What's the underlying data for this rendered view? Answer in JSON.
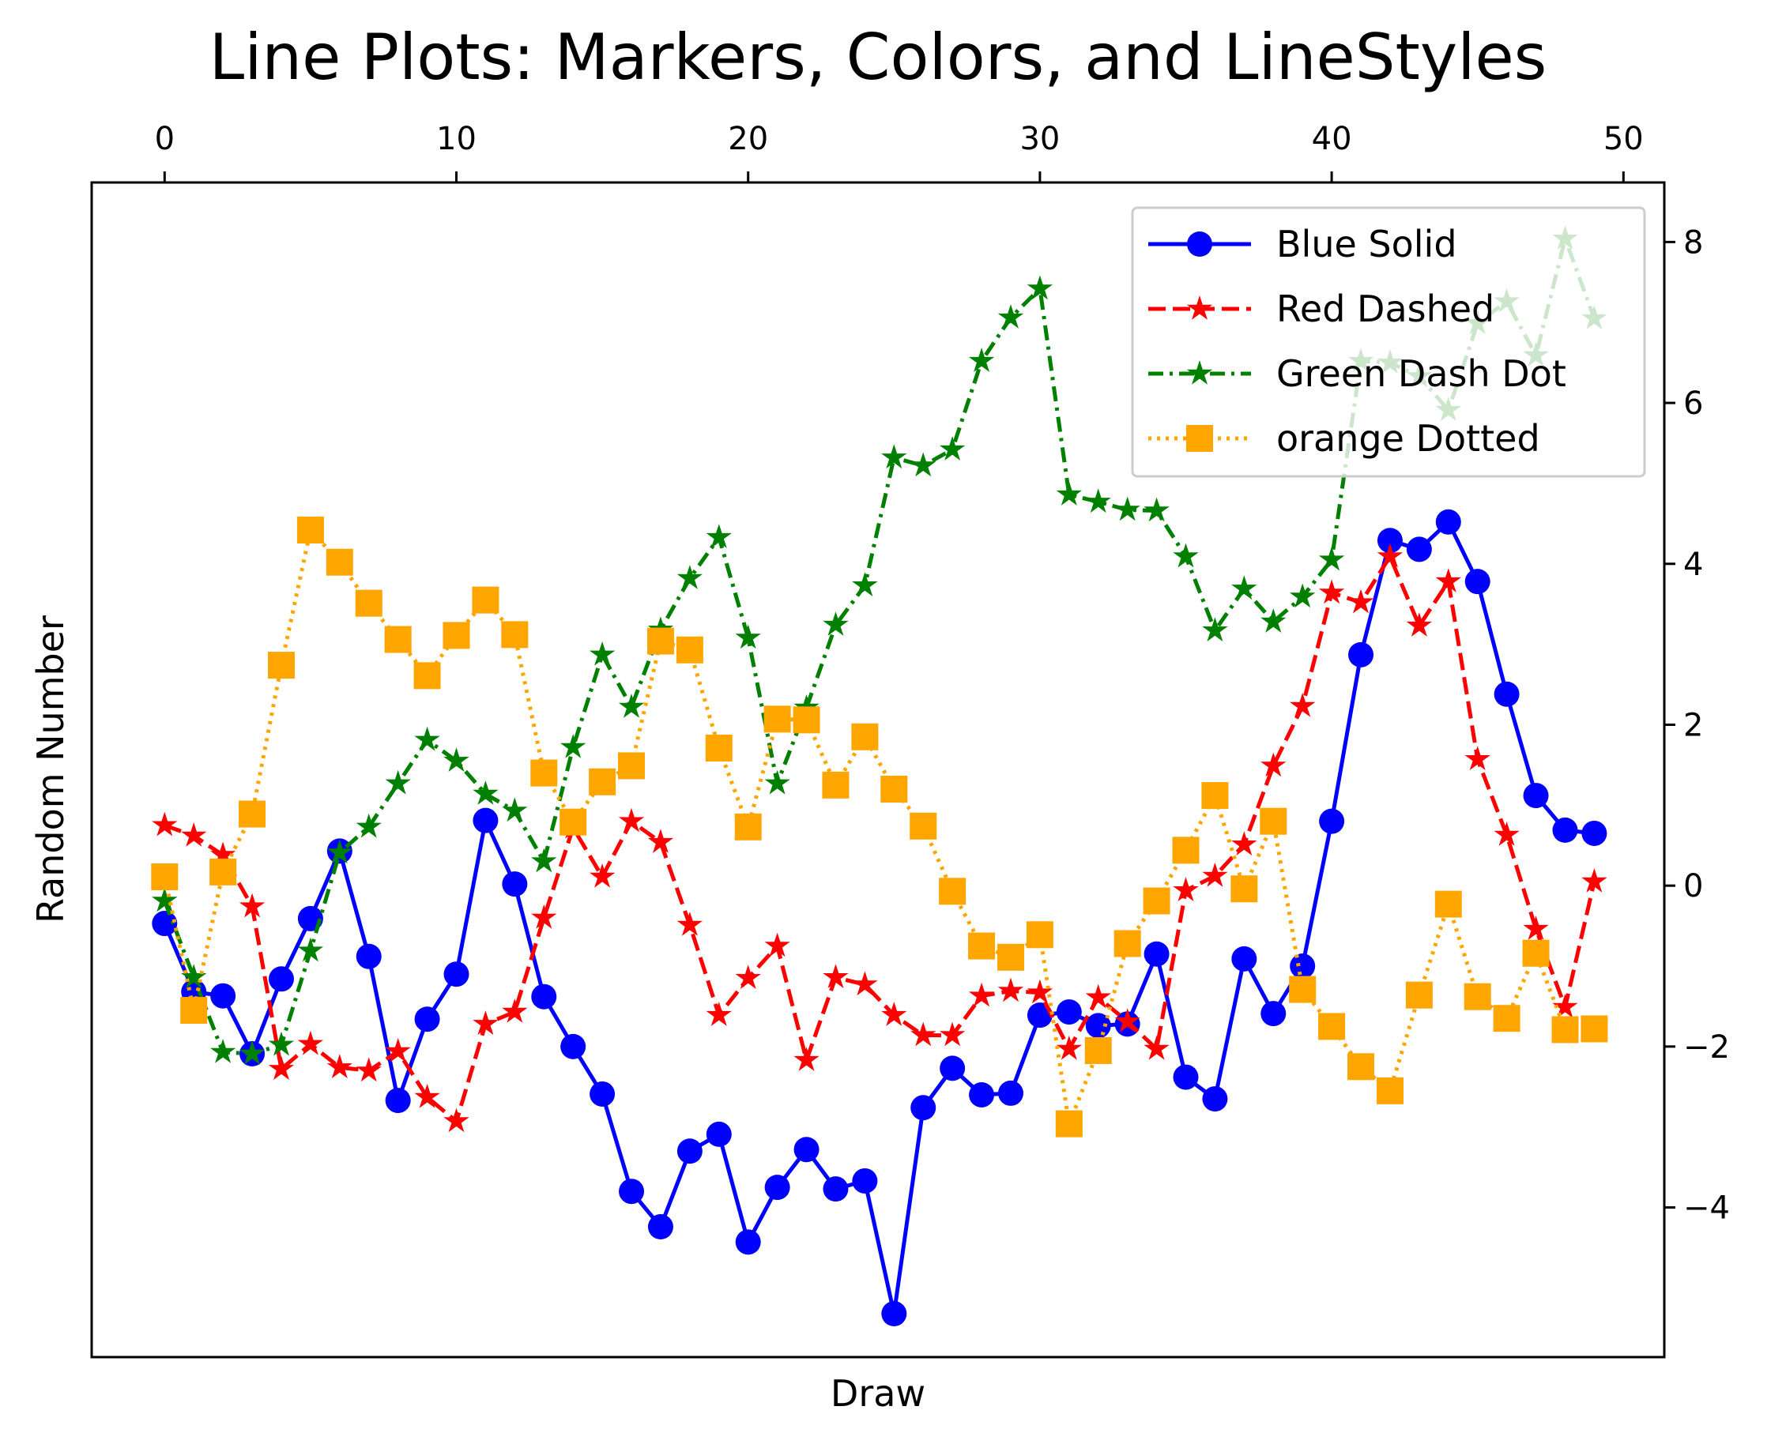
{
  "chart_data": {
    "type": "line",
    "title": "Line Plots: Markers, Colors, and LineStyles",
    "xlabel": "Draw",
    "ylabel": "Random Number",
    "xlim": [
      -2.5,
      51.4
    ],
    "ylim": [
      -5.86,
      8.74
    ],
    "x_ticks": [
      0,
      10,
      20,
      30,
      40,
      50
    ],
    "y_ticks": [
      -4,
      -2,
      0,
      2,
      4,
      6,
      8
    ],
    "x_tick_labels": [
      "0",
      "10",
      "20",
      "30",
      "40",
      "50"
    ],
    "y_tick_labels": [
      "−4",
      "−2",
      "0",
      "2",
      "4",
      "6",
      "8"
    ],
    "x_axis_position": "top",
    "y_axis_position": "right",
    "grid": false,
    "legend_position": "top-right",
    "x": [
      0,
      1,
      2,
      3,
      4,
      5,
      6,
      7,
      8,
      9,
      10,
      11,
      12,
      13,
      14,
      15,
      16,
      17,
      18,
      19,
      20,
      21,
      22,
      23,
      24,
      25,
      26,
      27,
      28,
      29,
      30,
      31,
      32,
      33,
      34,
      35,
      36,
      37,
      38,
      39,
      40,
      41,
      42,
      43,
      44,
      45,
      46,
      47,
      48,
      49
    ],
    "series": [
      {
        "name": "Blue Solid",
        "color": "#0000ff",
        "linestyle": "solid",
        "marker": "circle",
        "values": [
          -0.47,
          -1.32,
          -1.37,
          -2.09,
          -1.16,
          -0.41,
          0.43,
          -0.88,
          -2.67,
          -1.66,
          -1.1,
          0.81,
          0.02,
          -1.38,
          -2.0,
          -2.59,
          -3.8,
          -4.24,
          -3.3,
          -3.09,
          -4.43,
          -3.75,
          -3.28,
          -3.77,
          -3.67,
          -5.32,
          -2.76,
          -2.27,
          -2.6,
          -2.58,
          -1.61,
          -1.57,
          -1.74,
          -1.72,
          -0.85,
          -2.38,
          -2.65,
          -0.91,
          -1.59,
          -1.0,
          0.8,
          2.87,
          4.29,
          4.18,
          4.52,
          3.78,
          2.38,
          1.12,
          0.69,
          0.65
        ],
        "show_markers": true
      },
      {
        "name": "Red Dashed",
        "color": "#ff0000",
        "linestyle": "dashed",
        "marker": "star",
        "values": [
          0.75,
          0.62,
          0.38,
          -0.26,
          -2.28,
          -1.97,
          -2.26,
          -2.3,
          -2.06,
          -2.63,
          -2.93,
          -1.72,
          -1.57,
          -0.4,
          0.72,
          0.11,
          0.8,
          0.54,
          -0.49,
          -1.61,
          -1.15,
          -0.75,
          -2.17,
          -1.14,
          -1.23,
          -1.61,
          -1.86,
          -1.86,
          -1.37,
          -1.31,
          -1.33,
          -2.03,
          -1.39,
          -1.69,
          -2.03,
          -0.06,
          0.12,
          0.51,
          1.49,
          2.23,
          3.64,
          3.52,
          4.09,
          3.23,
          3.78,
          1.57,
          0.63,
          -0.54,
          -1.51,
          0.05
        ]
      },
      {
        "name": "Green Dash Dot",
        "color": "#008000",
        "linestyle": "dashdot",
        "marker": "star",
        "values": [
          -0.19,
          -1.14,
          -2.07,
          -2.09,
          -1.98,
          -0.81,
          0.41,
          0.73,
          1.27,
          1.81,
          1.55,
          1.14,
          0.93,
          0.3,
          1.72,
          2.87,
          2.22,
          3.18,
          3.82,
          4.33,
          3.08,
          1.27,
          2.21,
          3.24,
          3.73,
          5.32,
          5.22,
          5.42,
          6.52,
          7.06,
          7.42,
          4.86,
          4.77,
          4.67,
          4.66,
          4.09,
          3.17,
          3.69,
          3.28,
          3.59,
          4.05,
          6.52,
          6.5,
          6.33,
          5.91,
          6.99,
          7.26,
          6.59,
          8.04,
          7.05
        ]
      },
      {
        "name": "orange Dotted",
        "color": "#ffa500",
        "linestyle": "dotted",
        "marker": "square",
        "values": [
          0.11,
          -1.55,
          0.17,
          0.89,
          2.74,
          4.42,
          4.02,
          3.51,
          3.06,
          2.61,
          3.11,
          3.55,
          3.12,
          1.4,
          0.79,
          1.29,
          1.49,
          3.04,
          2.93,
          1.71,
          0.73,
          2.07,
          2.06,
          1.25,
          1.85,
          1.2,
          0.74,
          -0.07,
          -0.75,
          -0.89,
          -0.61,
          -2.96,
          -2.05,
          -0.72,
          -0.19,
          0.44,
          1.12,
          -0.04,
          0.8,
          -1.29,
          -1.75,
          -2.25,
          -2.55,
          -1.36,
          -0.23,
          -1.38,
          -1.65,
          -0.84,
          -1.79,
          -1.78
        ]
      }
    ]
  }
}
